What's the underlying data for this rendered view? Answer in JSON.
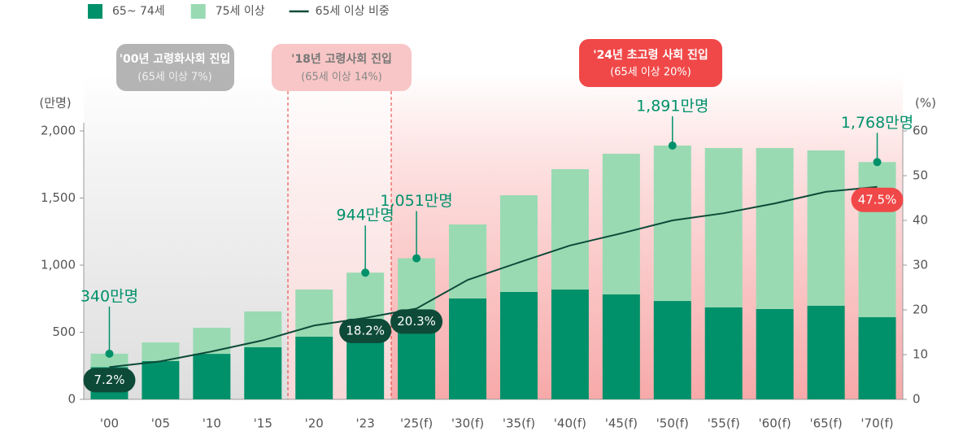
{
  "chart_data": {
    "type": "bar",
    "stacked": true,
    "categories": [
      "'00",
      "'05",
      "'10",
      "'15",
      "'20",
      "'23",
      "'25(f)",
      "'30(f)",
      "'35(f)",
      "'40(f)",
      "'45(f)",
      "'50(f)",
      "'55(f)",
      "'60(f)",
      "'65(f)",
      "'70(f)"
    ],
    "y_label": "(만명)",
    "y2_label": "(%)",
    "ylim": [
      0,
      2000
    ],
    "yticks": [
      0,
      500,
      {
        "value": 1000,
        "label": "1,000"
      },
      {
        "value": 1500,
        "label": "1,500"
      },
      {
        "value": 2000,
        "label": "2,000"
      }
    ],
    "y2lim": [
      0,
      60
    ],
    "y2ticks": [
      0,
      10,
      20,
      30,
      40,
      50,
      60
    ],
    "series": [
      {
        "name": "65~ 74세",
        "color": "#00916a",
        "values": [
          240,
          285,
          339,
          388,
          467,
          560,
          640,
          752,
          800,
          818,
          782,
          733,
          685,
          673,
          697,
          612
        ]
      },
      {
        "name": "75세 이상",
        "color": "#99dab3",
        "values": [
          100,
          139,
          194,
          267,
          351,
          384,
          411,
          551,
          721,
          897,
          1048,
          1158,
          1188,
          1200,
          1158,
          1156
        ]
      },
      {
        "name": "65세 이상 비중",
        "type": "line",
        "axis": "y2",
        "color": "#0d4a38",
        "values": [
          7.2,
          8.5,
          10.7,
          13.2,
          16.5,
          18.2,
          20.3,
          26.7,
          30.6,
          34.4,
          37.1,
          40.0,
          41.6,
          43.8,
          46.4,
          47.5
        ],
        "value_labels": [
          "7.2%",
          null,
          null,
          null,
          null,
          "18.2%",
          "20.3%",
          null,
          null,
          null,
          null,
          null,
          null,
          null,
          null,
          "47.5%"
        ],
        "label_colors": [
          "#0d4a38",
          null,
          null,
          null,
          null,
          "#0d4a38",
          "#0d4a38",
          null,
          null,
          null,
          null,
          null,
          null,
          null,
          null,
          "#f04848"
        ]
      }
    ],
    "totals": {
      "color": "#00916a",
      "values": [
        340,
        null,
        null,
        null,
        null,
        944,
        1051,
        null,
        null,
        null,
        null,
        1891,
        null,
        null,
        null,
        1768
      ],
      "value_labels": [
        "340만명",
        null,
        null,
        null,
        null,
        "944만명",
        "1,051만명",
        null,
        null,
        null,
        null,
        "1,891만명",
        null,
        null,
        null,
        "1,768만명"
      ]
    },
    "phases": [
      {
        "title": "'00년 고령화사회 진입",
        "subtitle": "(65세 이상 7%)"
      },
      {
        "title": "'18년 고령사회 진입",
        "subtitle": "(65세 이상 14%)"
      },
      {
        "title": "'24년 초고령 사회 진입",
        "subtitle": "(65세 이상 20%)"
      }
    ]
  }
}
